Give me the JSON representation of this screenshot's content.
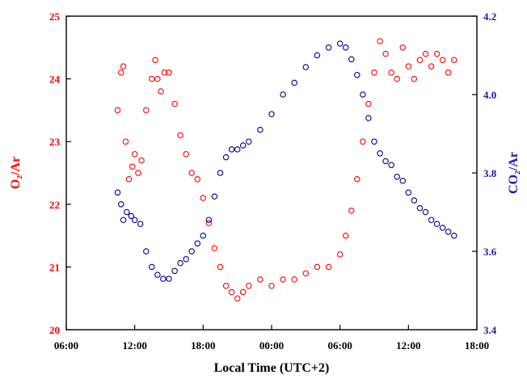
{
  "chart_data": {
    "type": "scatter",
    "title": "",
    "xlabel": "Local Time (UTC+2)",
    "ylabel_left": "O₂/Ar",
    "ylabel_right": "CO₂/Ar",
    "x_ticks": [
      "06:00",
      "12:00",
      "18:00",
      "00:00",
      "06:00",
      "12:00",
      "18:00"
    ],
    "x_unit": "hours since the first 06:00 tick",
    "xlim": [
      0,
      36
    ],
    "ylim_left": [
      20,
      25
    ],
    "ylim_right": [
      3.4,
      4.2
    ],
    "y_ticks_left": [
      "20",
      "21",
      "22",
      "23",
      "24",
      "25"
    ],
    "y_ticks_right": [
      "3.4",
      "3.6",
      "3.8",
      "4.0",
      "4.2"
    ],
    "marker": "open-circle",
    "legend": "none",
    "grid": false,
    "colors": {
      "o2": "#ff0000",
      "co2": "#00008b",
      "left_axis": "#ff0000",
      "right_axis": "#1a1aaa"
    },
    "series": [
      {
        "axis": "left",
        "color": "#ff0000",
        "x": [
          4.5,
          4.8,
          5.0,
          5.2,
          5.5,
          5.8,
          6.0,
          6.3,
          6.6,
          7.0,
          7.5,
          7.8,
          8.0,
          8.3,
          8.6,
          9.0,
          9.5,
          10.0,
          10.5,
          11.0,
          11.5,
          12.0,
          12.5,
          13.0,
          13.5,
          14.0,
          14.5,
          15.0,
          15.5,
          16.0,
          17.0,
          18.0,
          19.0,
          20.0,
          21.0,
          22.0,
          23.0,
          24.0,
          24.5,
          25.0,
          25.5,
          26.0,
          26.5,
          27.0,
          27.5,
          28.0,
          28.5,
          29.0,
          29.5,
          30.0,
          30.5,
          31.0,
          31.5,
          32.0,
          32.5,
          33.0,
          33.5,
          34.0
        ],
        "y": [
          23.5,
          24.1,
          24.2,
          23.0,
          22.4,
          22.6,
          22.8,
          22.5,
          22.7,
          23.5,
          24.0,
          24.3,
          24.0,
          23.8,
          24.1,
          24.1,
          23.6,
          23.1,
          22.8,
          22.5,
          22.4,
          22.1,
          21.7,
          21.3,
          21.0,
          20.7,
          20.6,
          20.5,
          20.6,
          20.7,
          20.8,
          20.7,
          20.8,
          20.8,
          20.9,
          21.0,
          21.0,
          21.2,
          21.5,
          21.9,
          22.4,
          23.0,
          23.6,
          24.1,
          24.6,
          24.4,
          24.1,
          24.0,
          24.5,
          24.2,
          24.0,
          24.3,
          24.4,
          24.2,
          24.4,
          24.3,
          24.1,
          24.3
        ]
      },
      {
        "axis": "right",
        "color": "#00008b",
        "x": [
          4.5,
          4.8,
          5.0,
          5.3,
          5.7,
          6.0,
          6.5,
          7.0,
          7.5,
          8.0,
          8.5,
          9.0,
          9.5,
          10.0,
          10.5,
          11.0,
          11.5,
          12.0,
          12.5,
          13.0,
          13.5,
          14.0,
          14.5,
          15.0,
          15.5,
          16.0,
          17.0,
          18.0,
          19.0,
          20.0,
          21.0,
          22.0,
          23.0,
          24.0,
          24.5,
          25.0,
          25.5,
          26.0,
          26.5,
          27.0,
          27.5,
          28.0,
          28.5,
          29.0,
          29.5,
          30.0,
          30.5,
          31.0,
          31.5,
          32.0,
          32.5,
          33.0,
          33.5,
          34.0
        ],
        "y": [
          3.75,
          3.72,
          3.68,
          3.7,
          3.69,
          3.68,
          3.67,
          3.6,
          3.56,
          3.54,
          3.53,
          3.53,
          3.55,
          3.57,
          3.58,
          3.6,
          3.62,
          3.64,
          3.68,
          3.74,
          3.8,
          3.84,
          3.86,
          3.86,
          3.87,
          3.88,
          3.91,
          3.95,
          4.0,
          4.03,
          4.07,
          4.1,
          4.12,
          4.13,
          4.12,
          4.09,
          4.05,
          4.0,
          3.94,
          3.88,
          3.85,
          3.83,
          3.82,
          3.79,
          3.78,
          3.75,
          3.73,
          3.71,
          3.7,
          3.68,
          3.67,
          3.66,
          3.65,
          3.64
        ]
      }
    ]
  }
}
